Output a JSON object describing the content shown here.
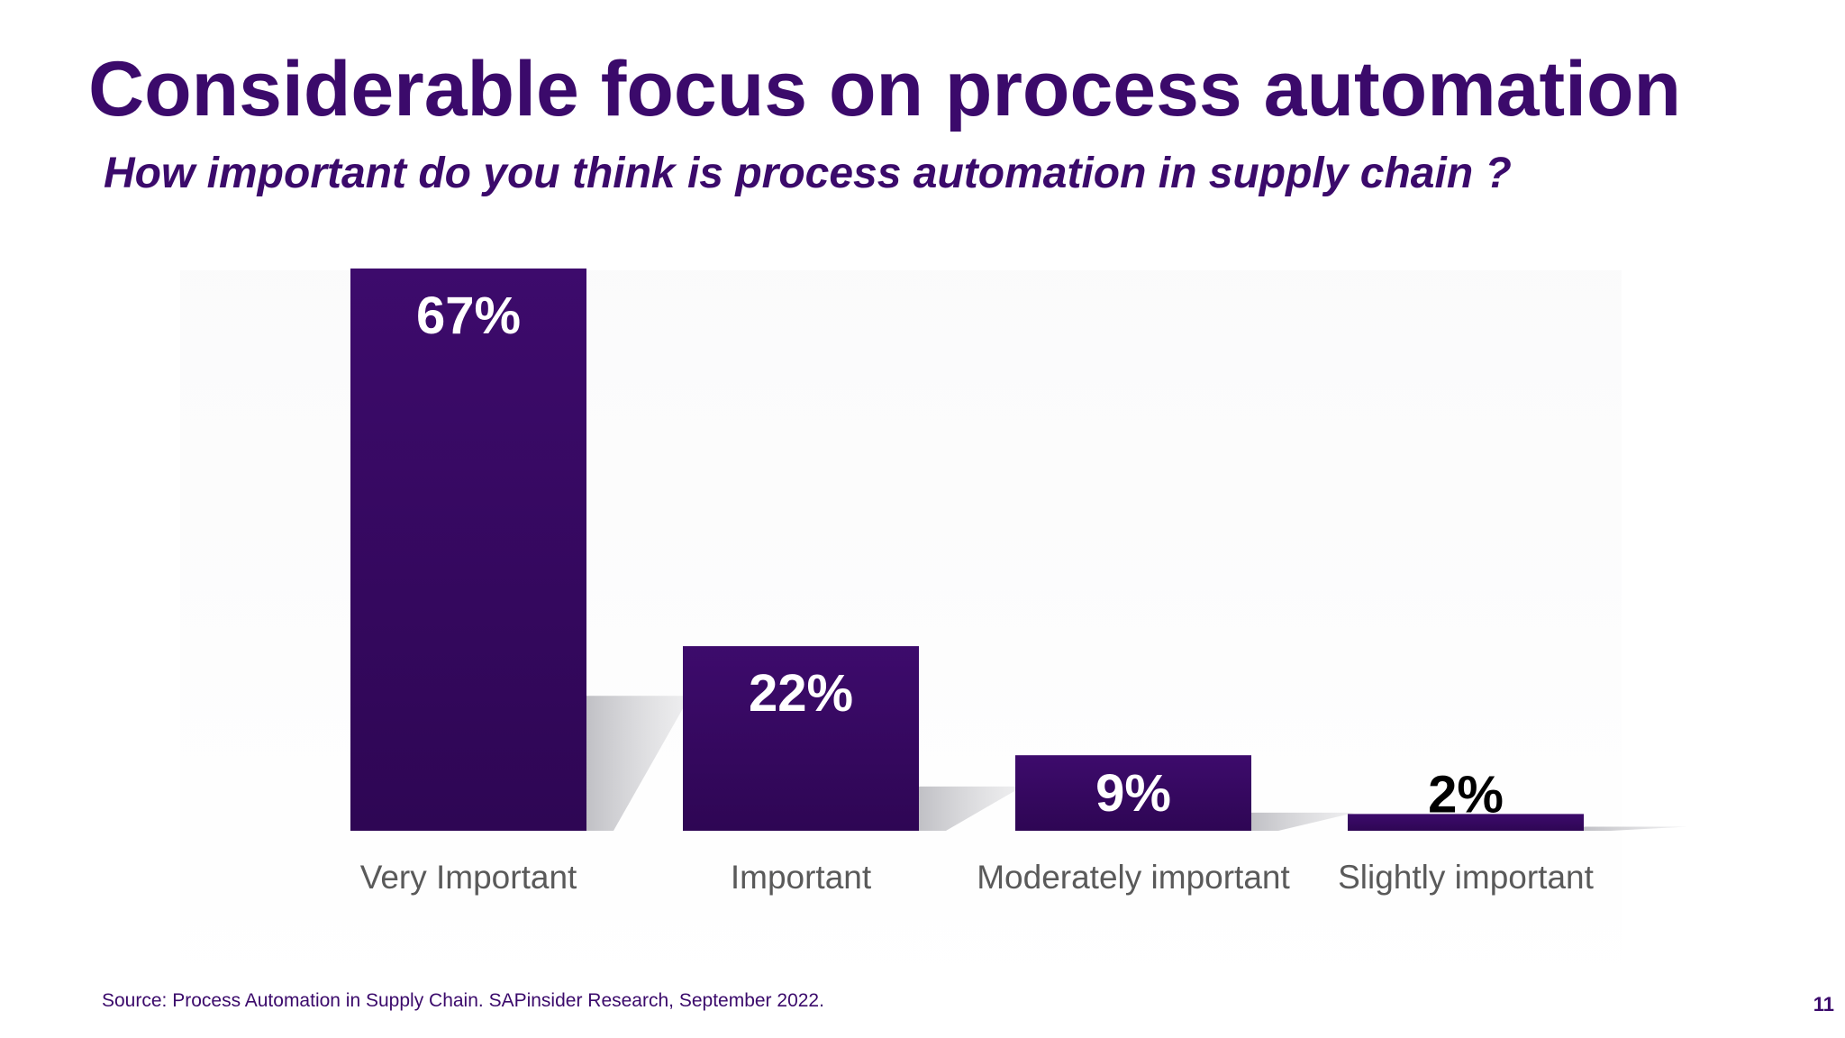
{
  "slide": {
    "title": "Considerable focus on process automation",
    "subtitle": "How important do you think is process automation in supply chain ?",
    "source": "Source: Process Automation in Supply Chain.  SAPinsider Research, September 2022.",
    "page_number": "11"
  },
  "colors": {
    "brand": "#3b0a6b",
    "bar": "#3a0a66",
    "bar_dark": "#2d0552",
    "label_inside": "#ffffff",
    "label_outside": "#000000",
    "category_text": "#5a5a5a",
    "shadow": "#c9c9cd"
  },
  "chart_data": {
    "type": "bar",
    "title": "",
    "xlabel": "",
    "ylabel": "",
    "categories": [
      "Very Important",
      "Important",
      "Moderately important",
      "Slightly important"
    ],
    "values": [
      67,
      22,
      9,
      2
    ],
    "value_labels": [
      "67%",
      "22%",
      "9%",
      "2%"
    ],
    "unit": "%",
    "ylim": [
      0,
      67
    ],
    "grid": false,
    "legend": "none"
  }
}
